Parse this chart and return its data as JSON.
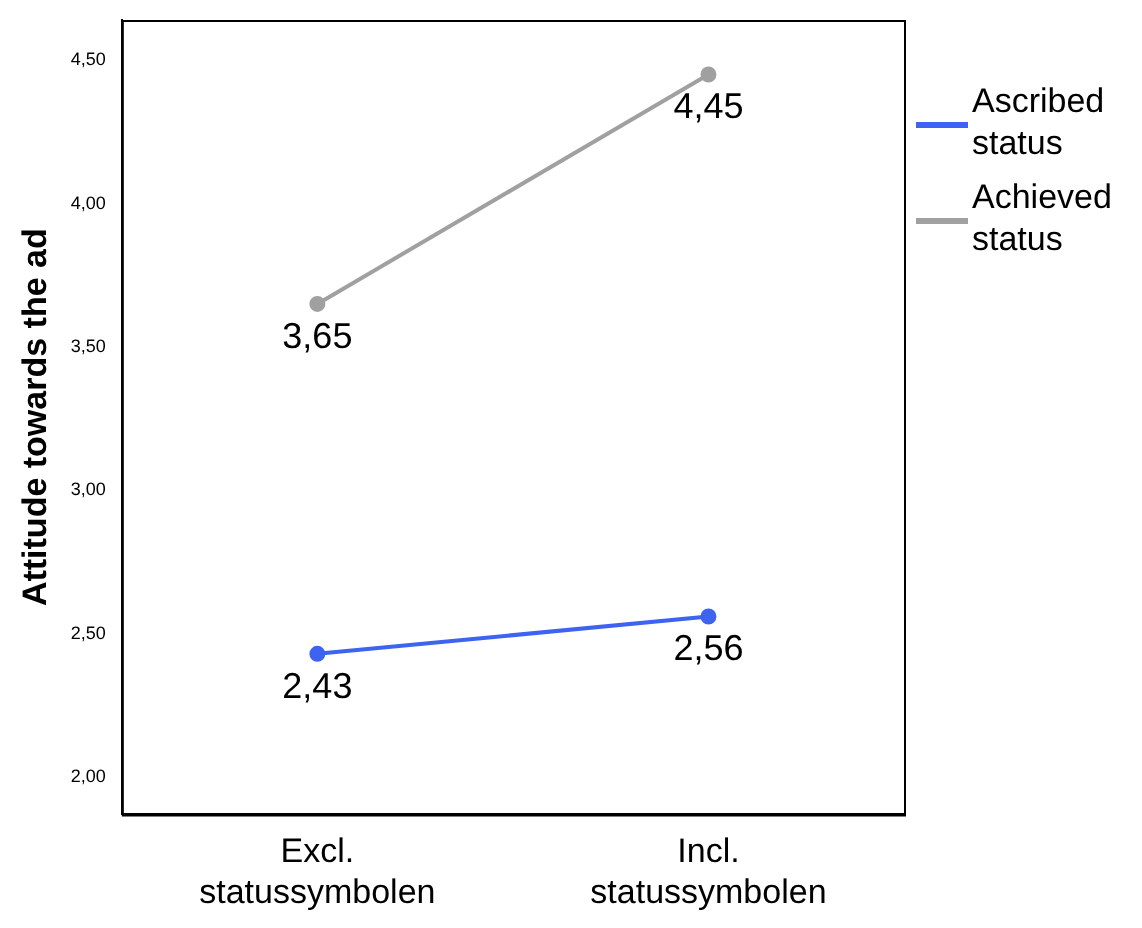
{
  "chart_data": {
    "type": "line",
    "ylabel": "Attitude towards the ad",
    "categories": [
      "Excl. statussymbolen",
      "Incl. statussymbolen"
    ],
    "series": [
      {
        "name": "Ascribed status",
        "color": "#3d63f0",
        "values": [
          2.43,
          2.56
        ],
        "value_labels": [
          "2,43",
          "2,56"
        ]
      },
      {
        "name": "Achieved status",
        "color": "#a0a0a0",
        "values": [
          3.65,
          4.45
        ],
        "value_labels": [
          "3,65",
          "4,45"
        ]
      }
    ],
    "ylim": [
      1.87,
      4.64
    ],
    "yticks": [
      {
        "value": 2,
        "label": "2,00"
      },
      {
        "value": 2.5,
        "label": "2,50"
      },
      {
        "value": 3,
        "label": "3,00"
      },
      {
        "value": 3.5,
        "label": "3,50"
      },
      {
        "value": 4,
        "label": "4,00"
      },
      {
        "value": 4.5,
        "label": "4,50"
      }
    ],
    "grid": false,
    "legend": "right",
    "marker": "circle",
    "line_style": "solid"
  }
}
